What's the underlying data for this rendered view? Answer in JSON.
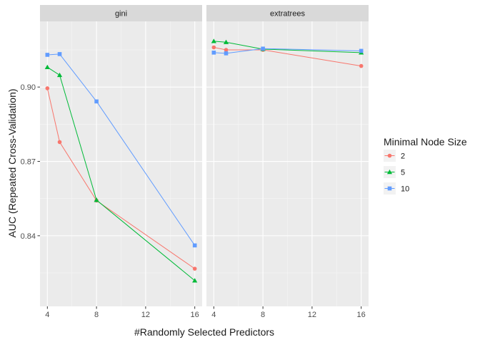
{
  "chart_data": {
    "type": "line",
    "xlabel": "#Randomly Selected Predictors",
    "ylabel": "AUC (Repeated Cross-Validation)",
    "xlim": [
      3.4,
      16.6
    ],
    "ylim": [
      0.8115,
      0.9265
    ],
    "x_ticks": [
      4,
      8,
      12,
      16
    ],
    "y_ticks": [
      0.84,
      0.87,
      0.9
    ],
    "y_tick_labels": [
      "0.84",
      "0.87",
      "0.90"
    ],
    "legend": {
      "title": "Minimal Node Size",
      "position": "right"
    },
    "colors": {
      "2": "#F8766D",
      "5": "#00BA38",
      "10": "#619CFF"
    },
    "panels": [
      {
        "name": "gini",
        "x": [
          4,
          5,
          8,
          16
        ],
        "series": [
          {
            "name": "2",
            "marker": "circle",
            "values": [
              0.8995,
              0.8778,
              0.8542,
              0.8267
            ]
          },
          {
            "name": "5",
            "marker": "triangle",
            "values": [
              0.908,
              0.9048,
              0.8544,
              0.8219
            ]
          },
          {
            "name": "10",
            "marker": "square",
            "values": [
              0.913,
              0.9133,
              0.8942,
              0.8361
            ]
          }
        ]
      },
      {
        "name": "extratrees",
        "x": [
          4,
          5,
          8,
          16
        ],
        "series": [
          {
            "name": "2",
            "marker": "circle",
            "values": [
              0.916,
              0.915,
              0.915,
              0.9085
            ]
          },
          {
            "name": "5",
            "marker": "triangle",
            "values": [
              0.9185,
              0.9181,
              0.9153,
              0.9139
            ]
          },
          {
            "name": "10",
            "marker": "square",
            "values": [
              0.9139,
              0.9136,
              0.9155,
              0.9146
            ]
          }
        ]
      }
    ]
  }
}
